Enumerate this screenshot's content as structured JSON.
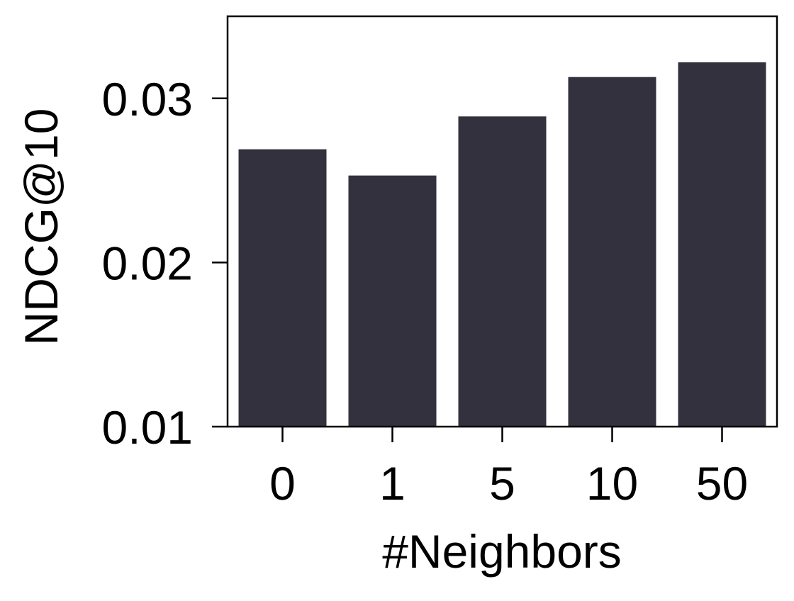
{
  "chart_data": {
    "type": "bar",
    "categories": [
      "0",
      "1",
      "5",
      "10",
      "50"
    ],
    "values": [
      0.0269,
      0.0253,
      0.0289,
      0.0313,
      0.0322
    ],
    "title": "",
    "xlabel": "#Neighbors",
    "ylabel": "NDCG@10",
    "ylim": [
      0.01,
      0.035
    ],
    "yticks": [
      "0.01",
      "0.02",
      "0.03"
    ],
    "grid": false,
    "legend": false,
    "colors": {
      "bar": "#32313d",
      "axis": "#000000"
    }
  }
}
